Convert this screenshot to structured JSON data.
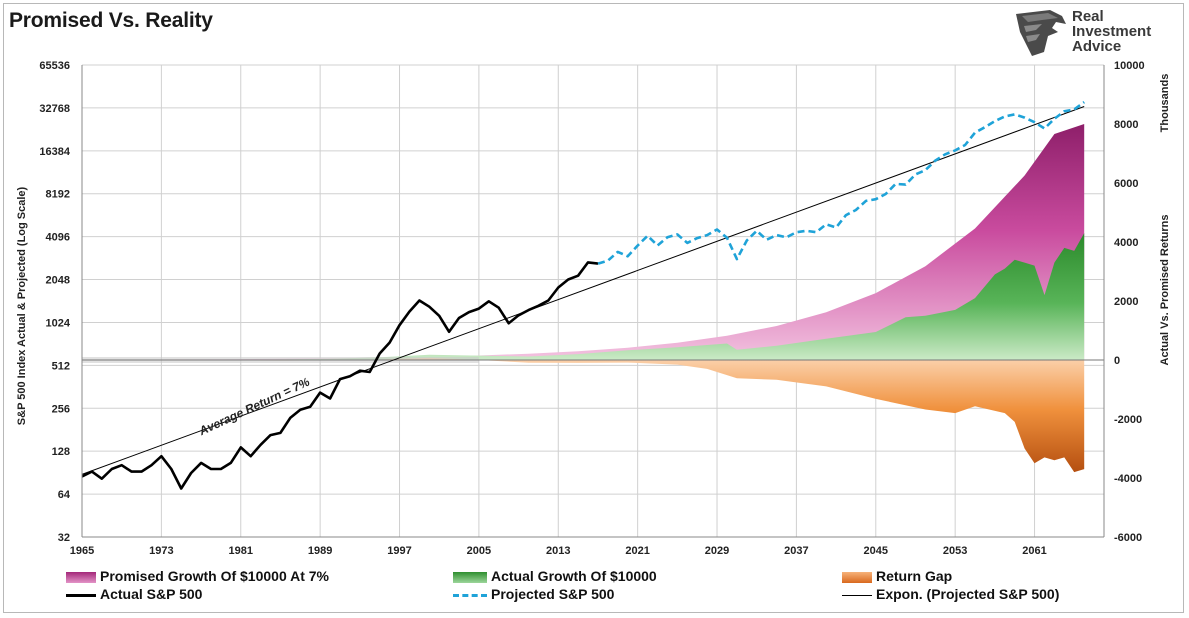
{
  "title": "Promised Vs. Reality",
  "logo": {
    "lines": [
      "Real",
      "Investment",
      "Advice"
    ],
    "icon": "eagle-head-icon"
  },
  "colors": {
    "promised": "#c2459a",
    "actual_growth": "#3fa23f",
    "gap": "#f08a3c",
    "actual_sp500": "#000000",
    "projected_sp500": "#1fa3d8",
    "trend": "#000000",
    "grid": "#d0d0d0"
  },
  "legend": {
    "promised": "Promised Growth Of $10000 At 7%",
    "actual_growth": "Actual Growth Of $10000",
    "gap": "Return Gap",
    "actual_sp500": "Actual S&P 500",
    "projected_sp500": "Projected S&P 500",
    "trend": "Expon. (Projected S&P 500)"
  },
  "chart_data": {
    "type": "line",
    "title": "Promised Vs. Reality",
    "xlabel": "",
    "ylabel": "S&P 500 Index Actual & Projected (Log Scale)",
    "y2label": "Actual Vs. Promised Returns",
    "y2unit": "Thousands",
    "annotation": "Average Return = 7%",
    "x_ticks": [
      "1965",
      "1973",
      "1981",
      "1989",
      "1997",
      "2005",
      "2013",
      "2021",
      "2029",
      "2037",
      "2045",
      "2053",
      "2061"
    ],
    "y_ticks": [
      "32",
      "64",
      "128",
      "256",
      "512",
      "1024",
      "2048",
      "4096",
      "8192",
      "16384",
      "32768",
      "65536"
    ],
    "y2_ticks": [
      "-6000",
      "-4000",
      "-2000",
      "0",
      "2000",
      "4000",
      "6000",
      "8000",
      "10000"
    ],
    "xlim": [
      1965,
      2068
    ],
    "ylim": [
      32,
      65536
    ],
    "y2lim": [
      -6000,
      10000
    ],
    "y_scale": "log2",
    "grid": true,
    "legend_position": "bottom",
    "series": [
      {
        "name": "Actual S&P 500",
        "axis": "left",
        "style": "solid-thick",
        "x": [
          1965,
          1966,
          1967,
          1968,
          1969,
          1970,
          1971,
          1972,
          1973,
          1974,
          1975,
          1976,
          1977,
          1978,
          1979,
          1980,
          1981,
          1982,
          1983,
          1984,
          1985,
          1986,
          1987,
          1988,
          1989,
          1990,
          1991,
          1992,
          1993,
          1994,
          1995,
          1996,
          1997,
          1998,
          1999,
          2000,
          2001,
          2002,
          2003,
          2004,
          2005,
          2006,
          2007,
          2008,
          2009,
          2010,
          2011,
          2012,
          2013,
          2014,
          2015,
          2016,
          2017
        ],
        "y": [
          85,
          92,
          82,
          96,
          102,
          92,
          92,
          102,
          118,
          96,
          70,
          90,
          106,
          96,
          96,
          106,
          136,
          118,
          142,
          166,
          172,
          220,
          250,
          262,
          330,
          300,
          410,
          430,
          470,
          460,
          620,
          740,
          980,
          1220,
          1460,
          1320,
          1140,
          880,
          1100,
          1210,
          1280,
          1440,
          1300,
          1010,
          1150,
          1250,
          1340,
          1460,
          1800,
          2050,
          2180,
          2700,
          2650
        ]
      },
      {
        "name": "Projected S&P 500",
        "axis": "left",
        "style": "dashed",
        "x": [
          2017,
          2018,
          2019,
          2020,
          2021,
          2022,
          2023,
          2024,
          2025,
          2026,
          2027,
          2028,
          2029,
          2030,
          2031,
          2032,
          2033,
          2034,
          2035,
          2036,
          2037,
          2038,
          2039,
          2040,
          2041,
          2042,
          2043,
          2044,
          2045,
          2046,
          2047,
          2048,
          2049,
          2050,
          2051,
          2052,
          2053,
          2054,
          2055,
          2056,
          2057,
          2058,
          2059,
          2060,
          2061,
          2062,
          2063,
          2064,
          2065,
          2066
        ],
        "y": [
          2650,
          2780,
          3200,
          2980,
          3550,
          4150,
          3550,
          4050,
          4250,
          3700,
          4000,
          4200,
          4600,
          4020,
          2850,
          3850,
          4500,
          3900,
          4200,
          4050,
          4400,
          4500,
          4400,
          5000,
          4750,
          5800,
          6300,
          7300,
          7500,
          8150,
          9600,
          9500,
          11200,
          12000,
          14000,
          15500,
          16500,
          18000,
          22000,
          24000,
          26500,
          28500,
          29500,
          28000,
          26000,
          23500,
          27500,
          31000,
          32000,
          36000
        ]
      },
      {
        "name": "Expon. (Projected S&P 500)",
        "axis": "left",
        "style": "thin",
        "x": [
          1965,
          2066
        ],
        "y": [
          88,
          33500
        ]
      },
      {
        "name": "Promised Growth Of $10000 At 7%",
        "axis": "right",
        "type": "area",
        "x": [
          1965,
          1970,
          1975,
          1980,
          1985,
          1990,
          1995,
          2000,
          2005,
          2010,
          2015,
          2020,
          2025,
          2030,
          2035,
          2040,
          2045,
          2050,
          2055,
          2060,
          2063,
          2066
        ],
        "y": [
          10,
          14,
          20,
          28,
          39,
          55,
          77,
          108,
          151,
          212,
          298,
          418,
          586,
          822,
          1152,
          1616,
          2267,
          3179,
          4459,
          6254,
          7661,
          8000
        ]
      },
      {
        "name": "Actual Growth Of $10000",
        "axis": "right",
        "type": "area",
        "x": [
          1965,
          1970,
          1975,
          1980,
          1985,
          1990,
          1995,
          2000,
          2005,
          2010,
          2015,
          2020,
          2025,
          2030,
          2031,
          2035,
          2040,
          2045,
          2048,
          2050,
          2053,
          2055,
          2057,
          2058,
          2059,
          2060,
          2061,
          2062,
          2063,
          2064,
          2065,
          2066
        ],
        "y": [
          10,
          12,
          8,
          15,
          20,
          40,
          90,
          180,
          150,
          120,
          200,
          330,
          430,
          560,
          350,
          480,
          720,
          950,
          1450,
          1500,
          1700,
          2100,
          2900,
          3100,
          3400,
          3300,
          3200,
          2200,
          3300,
          3800,
          3700,
          4300
        ]
      },
      {
        "name": "Return Gap",
        "axis": "right",
        "type": "area",
        "x": [
          1965,
          1970,
          1975,
          1980,
          1985,
          1990,
          1995,
          2000,
          2005,
          2010,
          2015,
          2020,
          2025,
          2028,
          2031,
          2035,
          2040,
          2045,
          2050,
          2053,
          2055,
          2058,
          2059,
          2060,
          2061,
          2062,
          2063,
          2064,
          2065,
          2066
        ],
        "y": [
          0,
          -2,
          -12,
          -13,
          -19,
          -15,
          13,
          72,
          -1,
          -92,
          -98,
          -88,
          -156,
          -300,
          -620,
          -672,
          -896,
          -1317,
          -1679,
          -1800,
          -1570,
          -1800,
          -2100,
          -3000,
          -3500,
          -3300,
          -3400,
          -3300,
          -3800,
          -3700
        ]
      }
    ]
  }
}
